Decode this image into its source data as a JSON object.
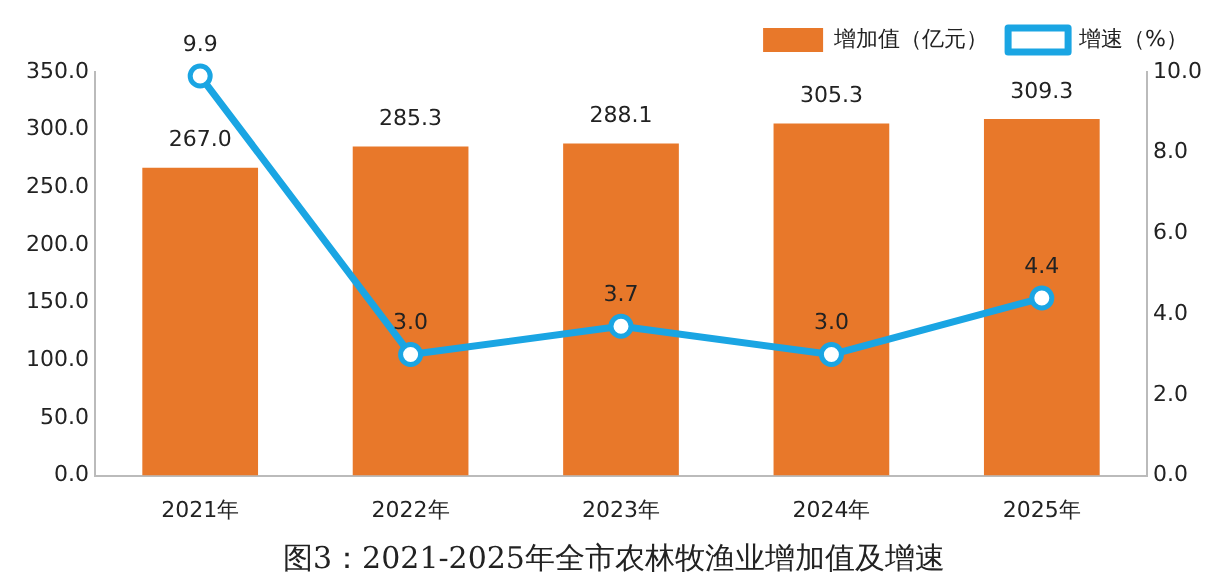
{
  "chart_data": {
    "type": "bar",
    "title": "图3：2021-2025年全市农林牧渔业增加值及增速",
    "categories": [
      "2021年",
      "2022年",
      "2023年",
      "2024年",
      "2025年"
    ],
    "series": [
      {
        "name": "增加值（亿元）",
        "color": "#e8782a",
        "values": [
          267.0,
          285.3,
          288.1,
          305.3,
          309.3
        ],
        "value_labels": [
          "267.0",
          "285.3",
          "288.1",
          "305.3",
          "309.3"
        ]
      },
      {
        "name": "增速（%）",
        "type": "line",
        "axis": "y2",
        "color": "#1aa5e3",
        "marker": "circle",
        "values": [
          9.9,
          3.0,
          3.7,
          3.0,
          4.4
        ],
        "value_labels": [
          "9.9",
          "3.0",
          "3.7",
          "3.0",
          "4.4"
        ]
      }
    ],
    "ylim": [
      0,
      350
    ],
    "yticks": [
      {
        "value": 0,
        "label": "0.0"
      },
      {
        "value": 50,
        "label": "50.0"
      },
      {
        "value": 100,
        "label": "100.0"
      },
      {
        "value": 150,
        "label": "150.0"
      },
      {
        "value": 200,
        "label": "200.0"
      },
      {
        "value": 250,
        "label": "250.0"
      },
      {
        "value": 300,
        "label": "300.0"
      },
      {
        "value": 350,
        "label": "350.0"
      }
    ],
    "y2lim": [
      0,
      10
    ],
    "y2ticks": [
      {
        "value": 0,
        "label": "0.0"
      },
      {
        "value": 2,
        "label": "2.0"
      },
      {
        "value": 4,
        "label": "4.0"
      },
      {
        "value": 6,
        "label": "6.0"
      },
      {
        "value": 8,
        "label": "8.0"
      },
      {
        "value": 10,
        "label": "10.0"
      }
    ],
    "legend": "top right"
  }
}
